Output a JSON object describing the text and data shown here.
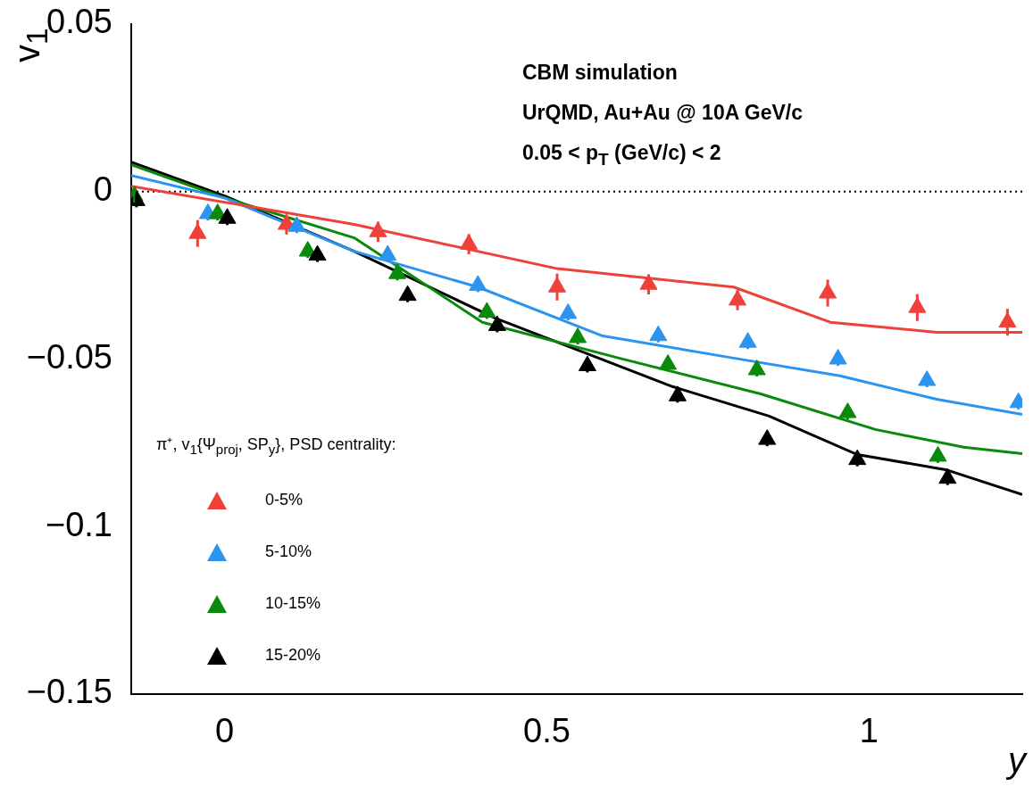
{
  "chart_data": {
    "type": "scatter",
    "xlabel": "y",
    "ylabel": "v$_{1}$",
    "legend_title": "π⁺, v$_{1}${Ψ$_{proj}$, SP$_{y}$}, PSD centrality:",
    "legend": "bottom left",
    "marker": "triangle",
    "grid": false,
    "xlim": [
      -0.145,
      1.238
    ],
    "xticks": [
      0,
      0.5,
      1
    ],
    "ylim": [
      -0.15,
      0.05
    ],
    "yticks": [
      {
        "value": -0.15,
        "label": "−0.15"
      },
      {
        "value": -0.1,
        "label": "−0.1"
      },
      {
        "value": -0.05,
        "label": "−0.05"
      },
      0,
      {
        "value": 0.05,
        "label": "0.05"
      }
    ],
    "annotations": [
      "CBM simulation",
      "UrQMD, Au+Au @ 10A GeV/c",
      "0.05 < p$_{T}$ (GeV/c) < 2"
    ],
    "ref_lines": [
      {
        "axis": "y",
        "value": 0,
        "color": "#000000",
        "line_style": "dotted"
      }
    ],
    "series": [
      {
        "name": "0-5%",
        "color": "#f0403a",
        "x": [
          -0.042,
          0.096,
          0.238,
          0.379,
          0.516,
          0.658,
          0.796,
          0.936,
          1.075,
          1.215
        ],
        "values": [
          -0.0125,
          -0.0098,
          -0.012,
          -0.0157,
          -0.0285,
          -0.0277,
          -0.0324,
          -0.0303,
          -0.0346,
          -0.039
        ],
        "errors": [
          0.004,
          0.003,
          0.003,
          0.003,
          0.004,
          0.003,
          0.003,
          0.004,
          0.004,
          0.004
        ]
      },
      {
        "name": "5-10%",
        "color": "#2b94ee",
        "x": [
          -0.026,
          0.112,
          0.253,
          0.393,
          0.533,
          0.673,
          0.812,
          0.952,
          1.09,
          1.232
        ],
        "values": [
          -0.0066,
          -0.0104,
          -0.019,
          -0.028,
          -0.0364,
          -0.043,
          -0.045,
          -0.05,
          -0.0564,
          -0.063
        ],
        "errors": [
          0.002,
          0.002,
          0.002,
          0.002,
          0.002,
          0.002,
          0.002,
          0.002,
          0.002,
          0.002
        ]
      },
      {
        "name": "10-15%",
        "color": "#0a8a0a",
        "x": [
          -0.14,
          -0.011,
          0.129,
          0.268,
          0.407,
          0.548,
          0.688,
          0.826,
          0.967,
          1.107
        ],
        "values": [
          -0.0013,
          -0.0066,
          -0.0178,
          -0.0245,
          -0.036,
          -0.0436,
          -0.0516,
          -0.0532,
          -0.066,
          -0.079
        ],
        "errors": [
          0.002,
          0.002,
          0.002,
          0.002,
          0.002,
          0.002,
          0.002,
          0.002,
          0.002,
          0.002
        ]
      },
      {
        "name": "15-20%",
        "color": "#000000",
        "x": [
          -0.137,
          0.004,
          0.144,
          0.284,
          0.423,
          0.563,
          0.703,
          0.842,
          0.982,
          1.122
        ],
        "values": [
          -0.0027,
          -0.008,
          -0.019,
          -0.031,
          -0.04,
          -0.052,
          -0.061,
          -0.074,
          -0.08,
          -0.0856
        ],
        "errors": [
          0.002,
          0.002,
          0.002,
          0.002,
          0.002,
          0.002,
          0.002,
          0.002,
          0.002,
          0.002
        ]
      },
      {
        "type": "line",
        "marker": "none",
        "color": "#f0403a",
        "x": [
          -0.145,
          0.201,
          0.516,
          0.79,
          0.94,
          1.105,
          1.238
        ],
        "values": [
          0.0016,
          -0.0098,
          -0.023,
          -0.0285,
          -0.039,
          -0.042,
          -0.042
        ]
      },
      {
        "type": "line",
        "marker": "none",
        "color": "#2b94ee",
        "x": [
          -0.145,
          0,
          0.201,
          0.393,
          0.585,
          0.79,
          0.955,
          1.105,
          1.238
        ],
        "values": [
          0.0048,
          -0.0019,
          -0.0178,
          -0.0285,
          -0.043,
          -0.0497,
          -0.055,
          -0.062,
          -0.0665
        ]
      },
      {
        "type": "line",
        "marker": "none",
        "color": "#0a8a0a",
        "x": [
          -0.145,
          0,
          0.201,
          0.4,
          0.612,
          0.832,
          1.01,
          1.147,
          1.238
        ],
        "values": [
          0.008,
          -0.0019,
          -0.0138,
          -0.039,
          -0.0497,
          -0.0604,
          -0.071,
          -0.0763,
          -0.0782
        ]
      },
      {
        "type": "line",
        "marker": "none",
        "color": "#000000",
        "x": [
          -0.145,
          0,
          0.201,
          0.42,
          0.695,
          0.845,
          0.982,
          1.119,
          1.238
        ],
        "values": [
          0.0088,
          -0.0013,
          -0.0178,
          -0.0378,
          -0.0582,
          -0.067,
          -0.0785,
          -0.083,
          -0.0904
        ]
      }
    ]
  }
}
